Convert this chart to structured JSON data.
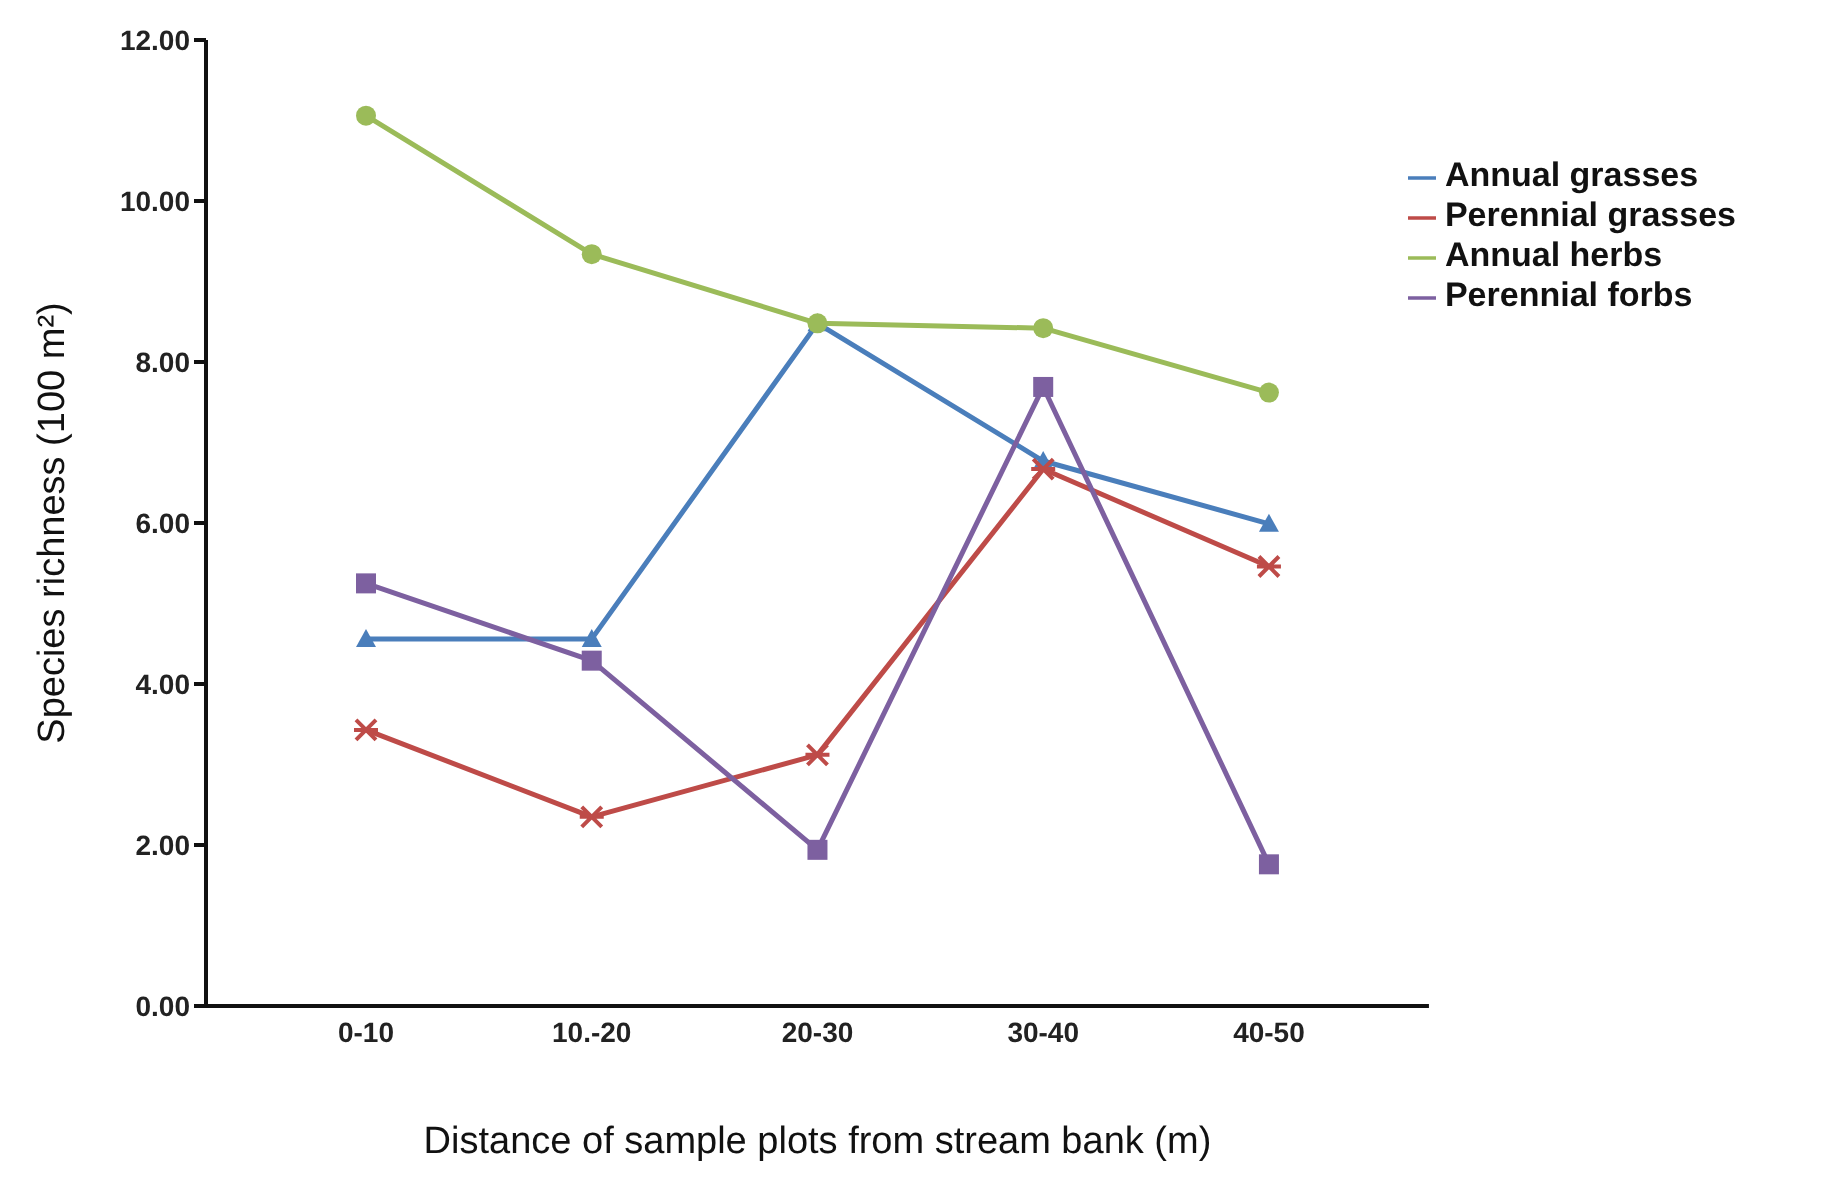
{
  "chart_data": {
    "type": "line",
    "xlabel": "Distance of sample plots from stream bank (m)",
    "ylabel": "Species richness (100 m²)",
    "categories": [
      "0-10",
      "10.-20",
      "20-30",
      "30-40",
      "40-50"
    ],
    "series": [
      {
        "name": "Annual grasses",
        "color": "#4a7ebb",
        "marker": "triangle",
        "values": [
          4.56,
          4.56,
          8.48,
          6.77,
          5.99
        ]
      },
      {
        "name": "Perennial grasses",
        "color": "#be4b48",
        "marker": "cross",
        "values": [
          3.43,
          2.35,
          3.12,
          6.67,
          5.46
        ]
      },
      {
        "name": "Annual herbs",
        "color": "#9bbb59",
        "marker": "circle",
        "values": [
          11.06,
          9.34,
          8.48,
          8.42,
          7.62
        ]
      },
      {
        "name": "Perennial forbs",
        "color": "#7d60a0",
        "marker": "square",
        "values": [
          5.25,
          4.29,
          1.94,
          7.69,
          1.76
        ]
      }
    ],
    "ylim": [
      0,
      12
    ],
    "yticks": [
      {
        "value": 0,
        "label": "0.00"
      },
      {
        "value": 2,
        "label": "2.00"
      },
      {
        "value": 4,
        "label": "4.00"
      },
      {
        "value": 6,
        "label": "6.00"
      },
      {
        "value": 8,
        "label": "8.00"
      },
      {
        "value": 10,
        "label": "10.00"
      },
      {
        "value": 12,
        "label": "12.00"
      }
    ],
    "grid": false,
    "legend": "top right"
  }
}
